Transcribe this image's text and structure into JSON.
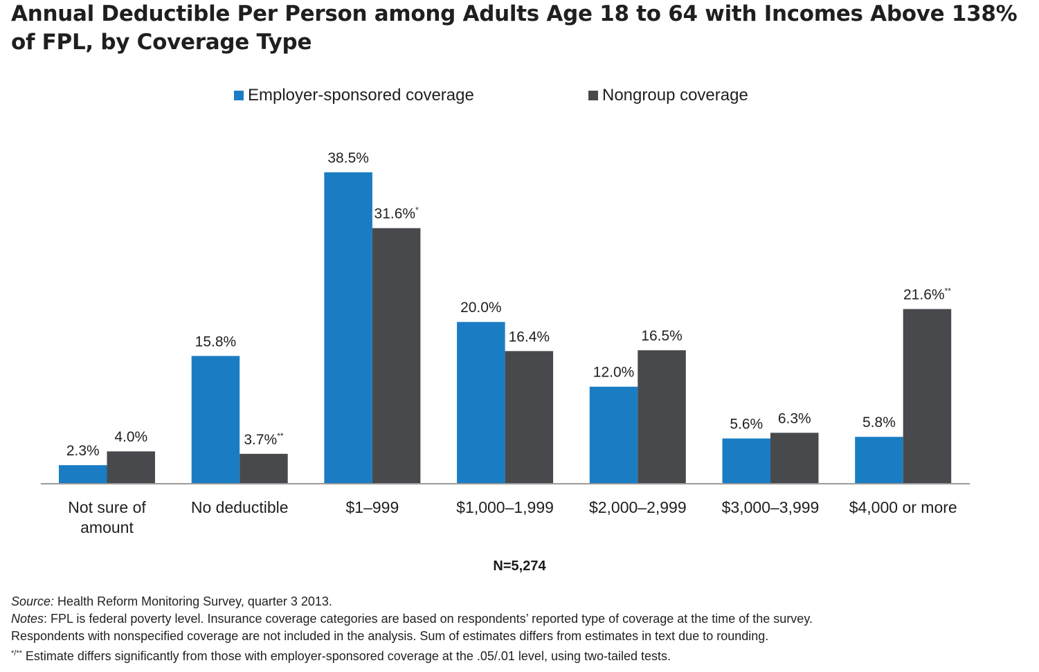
{
  "title": "Annual Deductible Per Person among Adults Age 18 to 64 with Incomes Above 138% of FPL, by Coverage Type",
  "n_label": "N=5,274",
  "notes": {
    "source_label": "Source:",
    "source_text": " Health Reform Monitoring Survey, quarter 3 2013.",
    "notes_label": "Notes",
    "notes_text_1": ": FPL is federal poverty level. Insurance coverage categories are based on respondents’ reported type of coverage at the time of the survey.",
    "notes_text_2": "Respondents with nonspecified coverage are not included in the analysis. Sum of estimates differs from estimates in text due to rounding.",
    "sig_marker": "*/**",
    "sig_text": " Estimate differs significantly from those with employer-sponsored coverage at the .05/.01 level, using two-tailed tests."
  },
  "colors": {
    "employer": "#1a7dc4",
    "nongroup": "#48494d",
    "axis": "#9a9a9a"
  },
  "chart_data": {
    "type": "bar",
    "title": "Annual Deductible Per Person among Adults Age 18 to 64 with Incomes Above 138% of FPL, by Coverage Type",
    "xlabel": "",
    "ylabel": "",
    "ylim": [
      0,
      40
    ],
    "grid": false,
    "legend_position": "top",
    "categories": [
      [
        "Not sure of",
        "amount"
      ],
      [
        "No deductible"
      ],
      [
        "$1–999"
      ],
      [
        "$1,000–1,999"
      ],
      [
        "$2,000–2,999"
      ],
      [
        "$3,000–3,999"
      ],
      [
        "$4,000 or more"
      ]
    ],
    "series": [
      {
        "name": "Employer-sponsored coverage",
        "values": [
          2.3,
          15.8,
          38.5,
          20.0,
          12.0,
          5.6,
          5.8
        ],
        "labels": [
          "2.3%",
          "15.8%",
          "38.5%",
          "20.0%",
          "12.0%",
          "5.6%",
          "5.8%"
        ],
        "markers": [
          "",
          "",
          "",
          "",
          "",
          "",
          ""
        ]
      },
      {
        "name": "Nongroup coverage",
        "values": [
          4.0,
          3.7,
          31.6,
          16.4,
          16.5,
          6.3,
          21.6
        ],
        "labels": [
          "4.0%",
          "3.7%",
          "31.6%",
          "16.4%",
          "16.5%",
          "6.3%",
          "21.6%"
        ],
        "markers": [
          "",
          "**",
          "*",
          "",
          "",
          "",
          "**"
        ]
      }
    ]
  }
}
